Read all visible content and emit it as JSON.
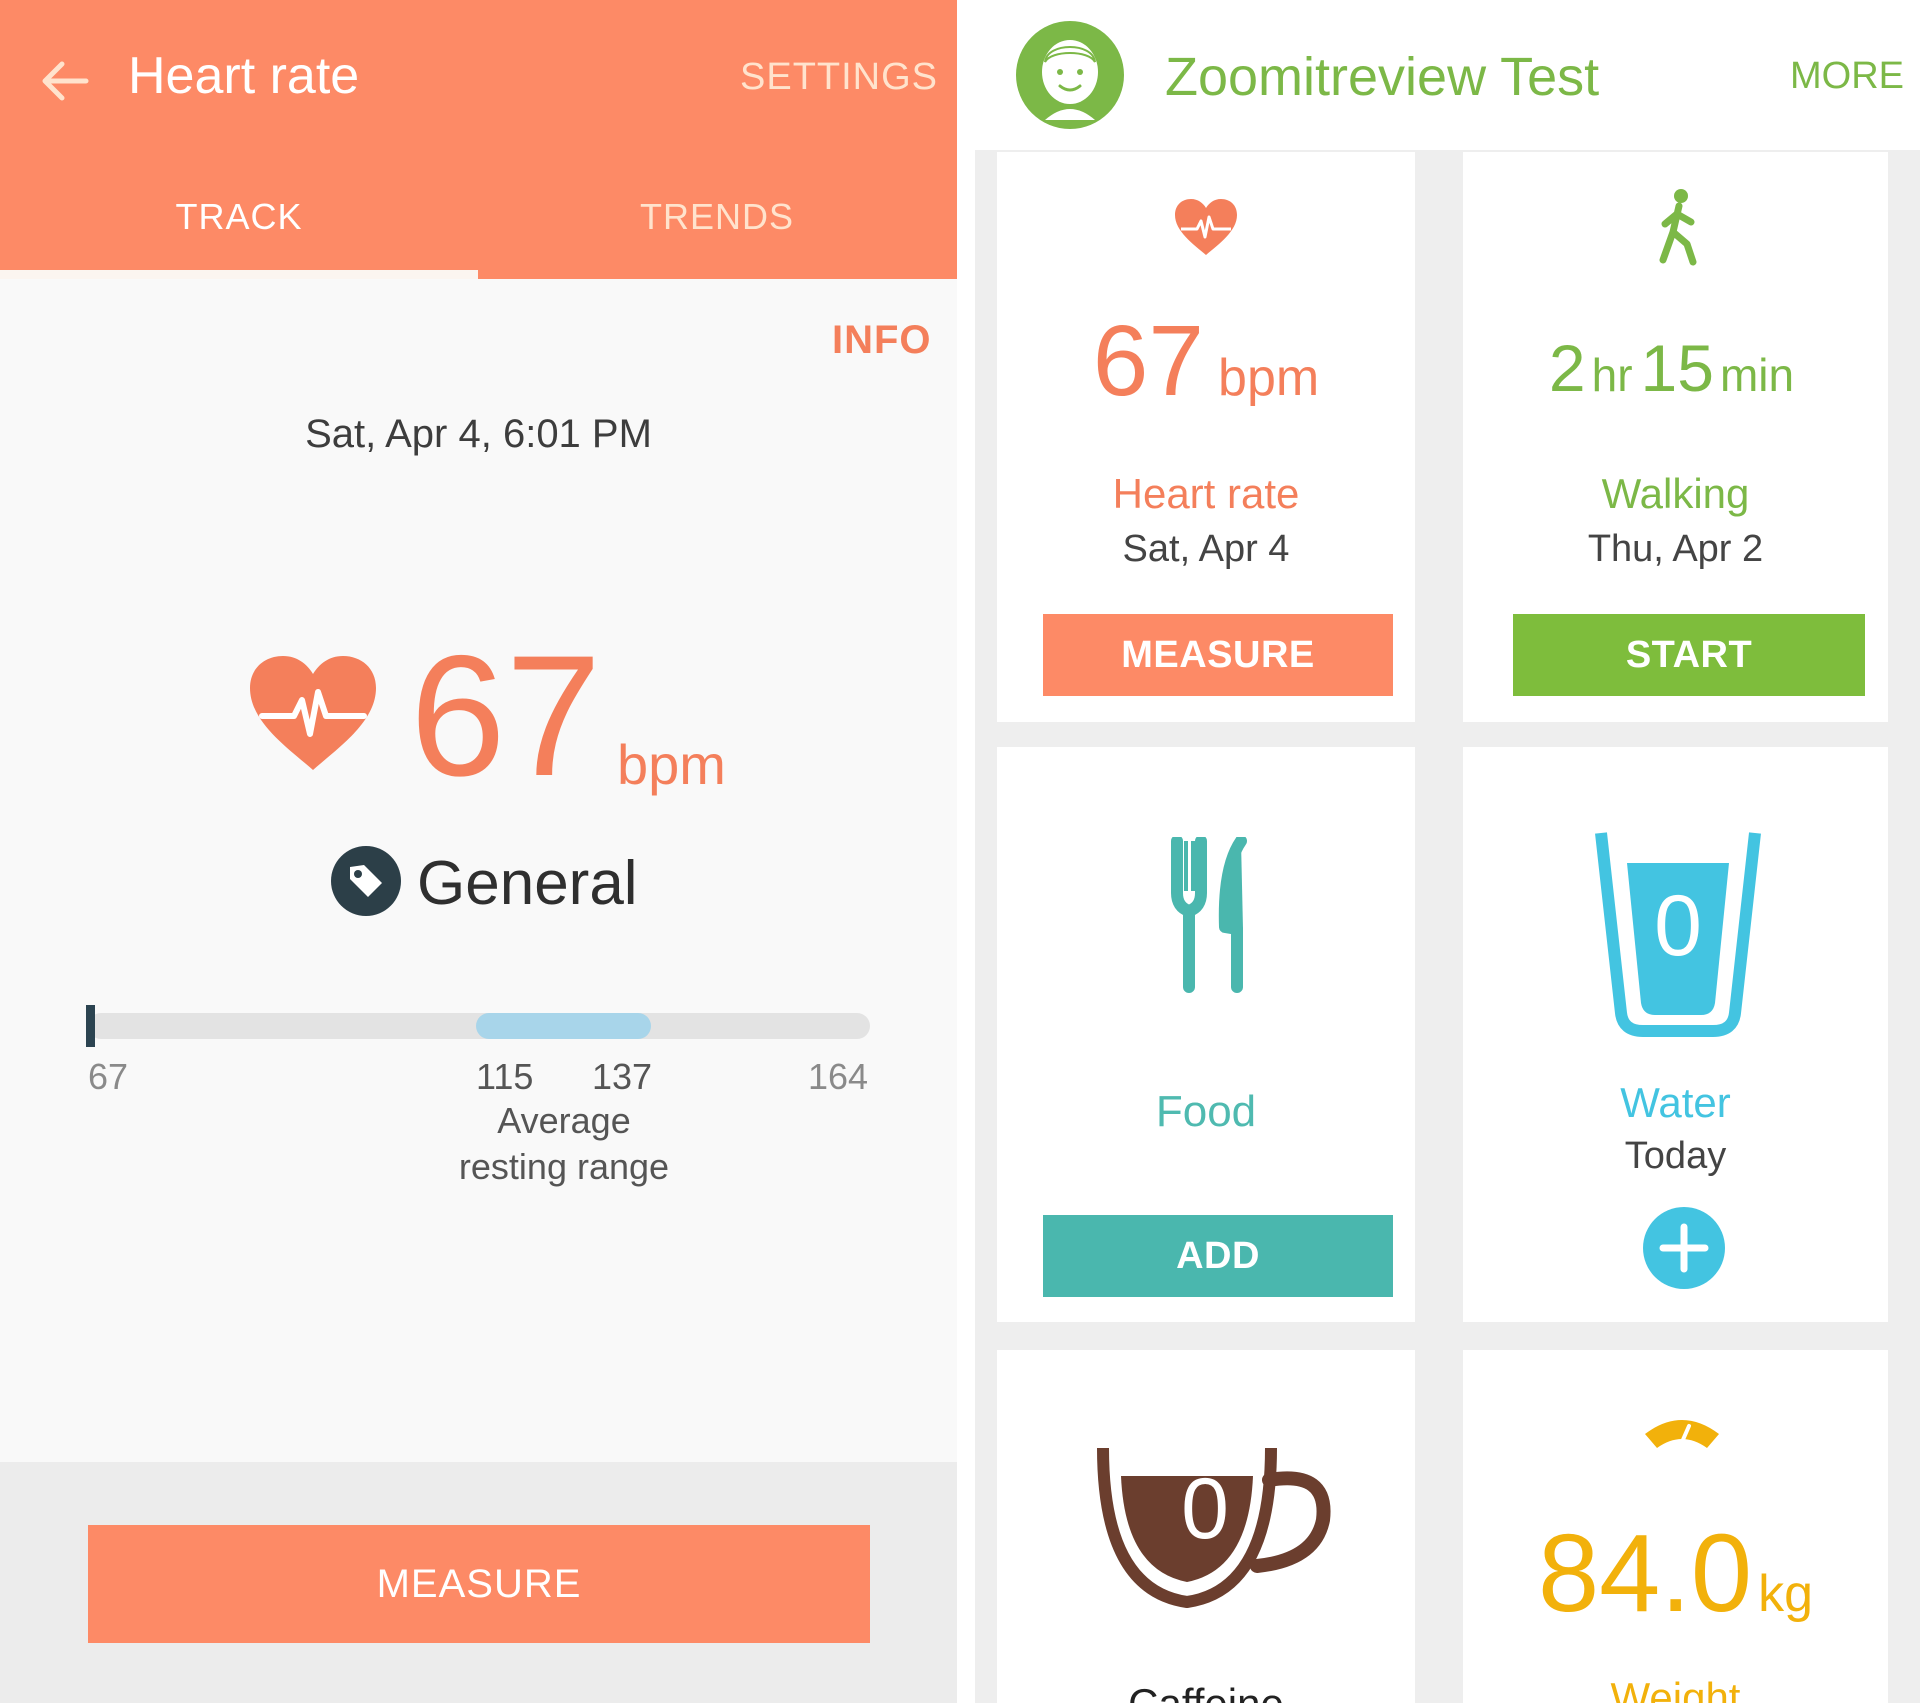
{
  "heart_rate_screen": {
    "title": "Heart rate",
    "settings_label": "SETTINGS",
    "tabs": [
      {
        "label": "TRACK",
        "active": true
      },
      {
        "label": "TRENDS",
        "active": false
      }
    ],
    "info_label": "INFO",
    "datetime": "Sat, Apr 4, 6:01 PM",
    "reading": {
      "value": "67",
      "unit": "bpm"
    },
    "tag": "General",
    "range": {
      "min": 67,
      "max": 164,
      "low": 115,
      "high": 137,
      "current": 67,
      "labels": {
        "min": "67",
        "low": "115",
        "high": "137",
        "max": "164"
      },
      "caption_line1": "Average",
      "caption_line2": "resting range"
    },
    "measure_button": "MEASURE",
    "colors": {
      "accent": "#fd8a66",
      "range_fill": "#a8d5ea"
    }
  },
  "dashboard": {
    "profile_name": "Zoomitreview Test",
    "more_label": "MORE",
    "cards": {
      "heart_rate": {
        "icon": "heart-pulse-icon",
        "value": "67",
        "unit": "bpm",
        "label": "Heart rate",
        "date": "Sat, Apr 4",
        "button": "MEASURE",
        "color": "#f47f5b"
      },
      "walking": {
        "icon": "walking-person-icon",
        "hours": "2",
        "hours_unit": "hr",
        "minutes": "15",
        "minutes_unit": "min",
        "label": "Walking",
        "date": "Thu, Apr 2",
        "button": "START",
        "color": "#7cb847"
      },
      "food": {
        "icon": "fork-knife-icon",
        "label": "Food",
        "button": "ADD",
        "color": "#4ab7ae"
      },
      "water": {
        "icon": "water-glass-icon",
        "count": "0",
        "label": "Water",
        "date": "Today",
        "add_icon": "plus-icon",
        "color": "#43c4e1"
      },
      "caffeine": {
        "icon": "coffee-cup-icon",
        "count": "0",
        "label": "Caffeine",
        "color": "#6b3e2e"
      },
      "weight": {
        "icon": "scale-icon",
        "value": "84.0",
        "unit": "kg",
        "label": "Weight",
        "color": "#f2b10b"
      }
    }
  }
}
